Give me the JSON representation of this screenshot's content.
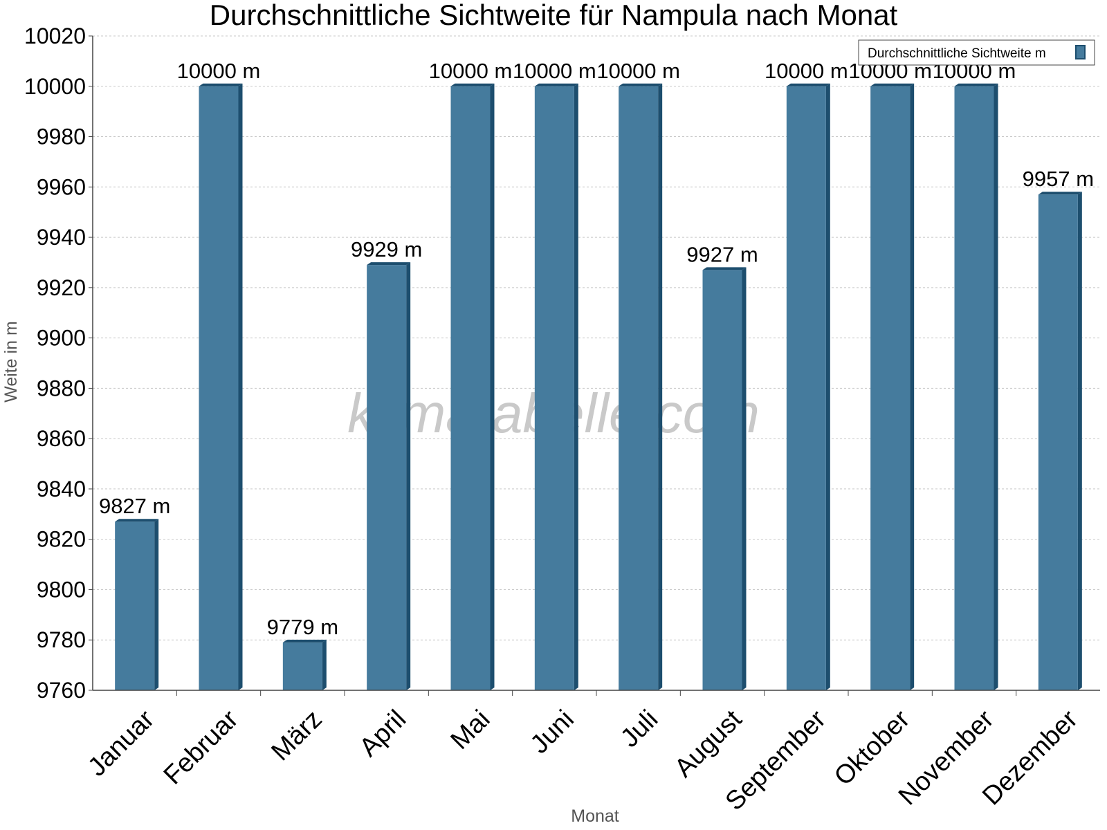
{
  "chart_data": {
    "type": "bar",
    "title": "Durchschnittliche Sichtweite für Nampula nach Monat",
    "xlabel": "Monat",
    "ylabel": "Weite in m",
    "watermark": "klimatabelle.com",
    "unit_suffix": " m",
    "categories": [
      "Januar",
      "Februar",
      "März",
      "April",
      "Mai",
      "Juni",
      "Juli",
      "August",
      "September",
      "Oktober",
      "November",
      "Dezember"
    ],
    "series": [
      {
        "name": "Durchschnittliche Sichtweite m",
        "values": [
          9827,
          10000,
          9779,
          9929,
          10000,
          10000,
          10000,
          9927,
          10000,
          10000,
          10000,
          9957
        ]
      }
    ],
    "ylim": [
      9760,
      10020
    ],
    "yticks": [
      9760,
      9780,
      9800,
      9820,
      9840,
      9860,
      9880,
      9900,
      9920,
      9940,
      9960,
      9980,
      10000,
      10020
    ],
    "grid": true,
    "legend_position": "top-right",
    "colors": {
      "bar": "#457b9d",
      "bar_side": "#1d4e6e",
      "grid": "#c8c8c8",
      "axis": "#444444",
      "watermark": "#c4c4c4"
    }
  }
}
